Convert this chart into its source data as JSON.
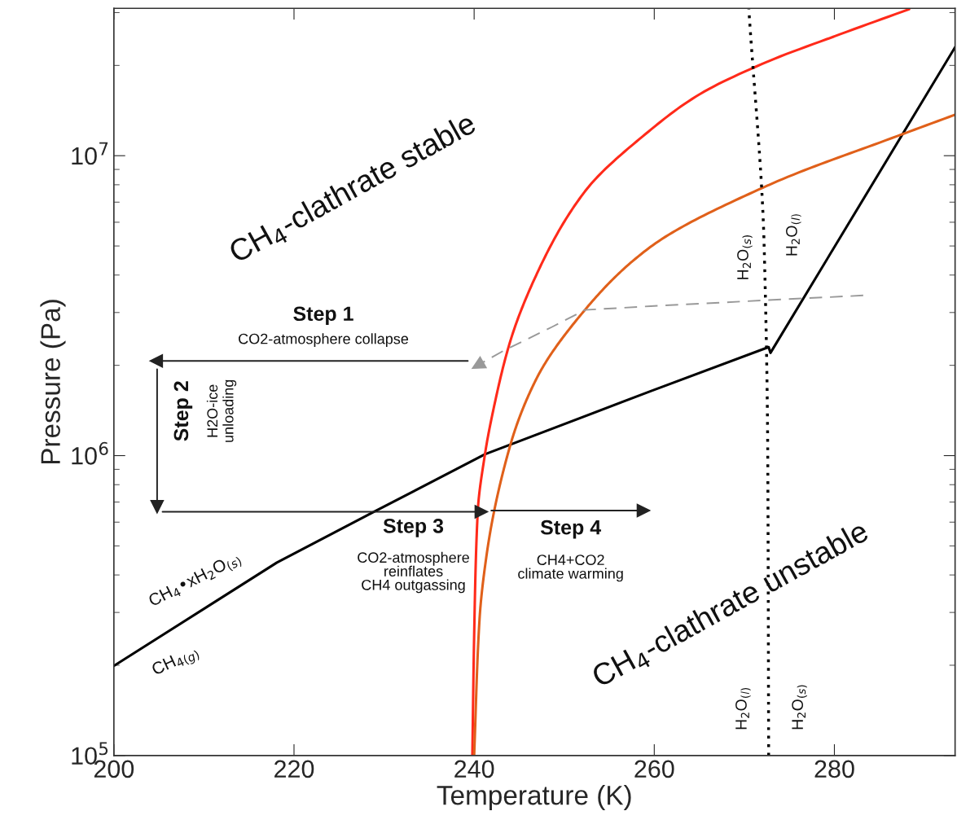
{
  "chart_data": {
    "type": "line",
    "xlabel": "Temperature (K)",
    "ylabel": "Pressure (Pa)",
    "log": "y",
    "xlim": [
      200,
      293.4
    ],
    "ylim": [
      100000,
      31000000
    ],
    "xticks": [
      200,
      220,
      240,
      260,
      280
    ],
    "yticks": [
      {
        "value": 100000,
        "label": "10$^{5}$"
      },
      {
        "value": 1000000,
        "label": "10$^{6}$"
      },
      {
        "value": 10000000,
        "label": "10$^{7}$"
      }
    ],
    "grid": false,
    "legend": false,
    "series": [
      {
        "color": "#000000",
        "line_style": "solid",
        "x": [
          200,
          218.1,
          228.9,
          241.2,
          259.6,
          272.7,
          272.9,
          293.4
        ],
        "values": [
          199000,
          440000,
          650000,
          1010000,
          1640000,
          2300000,
          2200000,
          23000000
        ]
      },
      {
        "color": "#ff2a1a",
        "line_style": "solid",
        "x": [
          239.8,
          240.0,
          240.4,
          241.2,
          242.3,
          244.0,
          246.9,
          252.3,
          259.6,
          265.0,
          272.6,
          280.0,
          288.3
        ],
        "values": [
          100000,
          250000,
          650000,
          1010000,
          1500000,
          2400000,
          4000000,
          7600000,
          12200000,
          16000000,
          20600000,
          25000000,
          30800000
        ]
      },
      {
        "color": "#e0601a",
        "line_style": "solid",
        "x": [
          240.0,
          240.6,
          241.4,
          244.0,
          246.9,
          252.3,
          259.6,
          272.7,
          287.9,
          293.4
        ],
        "values": [
          100000,
          285000,
          470000,
          1080000,
          1800000,
          3060000,
          4970000,
          7980000,
          11900000,
          13700000
        ]
      },
      {
        "color": "#000000",
        "line_style": "dotted",
        "x": [
          272.7,
          272.6,
          272.2,
          270.5
        ],
        "values": [
          100000,
          1000000,
          5000000,
          30800000
        ]
      },
      {
        "color": "#999999",
        "line_style": "dashed",
        "x": [
          283.2,
          272.7,
          259.6,
          252.3,
          248.7,
          243.3,
          240.4
        ],
        "values": [
          3420000,
          3300000,
          3150000,
          3060000,
          2690000,
          2240000,
          2000000
        ]
      },
      {
        "color": "#222222",
        "line_style": "solid",
        "x": [
          239.3,
          204.7
        ],
        "values": [
          2070000,
          2070000
        ]
      },
      {
        "color": "#222222",
        "line_style": "solid",
        "x": [
          204.8,
          204.8
        ],
        "values": [
          1940000,
          675000
        ]
      },
      {
        "color": "#222222",
        "line_style": "solid",
        "x": [
          205.4,
          240.8
        ],
        "values": [
          650000,
          650000
        ]
      },
      {
        "color": "#222222",
        "line_style": "solid",
        "x": [
          241.9,
          258.8
        ],
        "values": [
          656000,
          656000
        ]
      }
    ],
    "annotations": [
      "CH$_{4}$-clathrate stable",
      "CH$_{4}$-clathrate unstable",
      "Step 1",
      "CO2-atmosphere collapse",
      "Step 2",
      "H2O-ice\nunloading",
      "Step 3",
      "CO2-atmosphere\nreinflates\nCH4 outgassing",
      "Step 4",
      "CH4+CO2\nclimate warming",
      "CH$_{4}$•xH$_{2}$O$_{(s)}$",
      "CH$_{4(g)}$",
      "H$_{2}$O$_{(s)}$",
      "H$_{2}$O$_{(l)}$",
      "H$_{2}$O$_{(l)}$",
      "H$_{2}$O$_{(s)}$"
    ]
  }
}
